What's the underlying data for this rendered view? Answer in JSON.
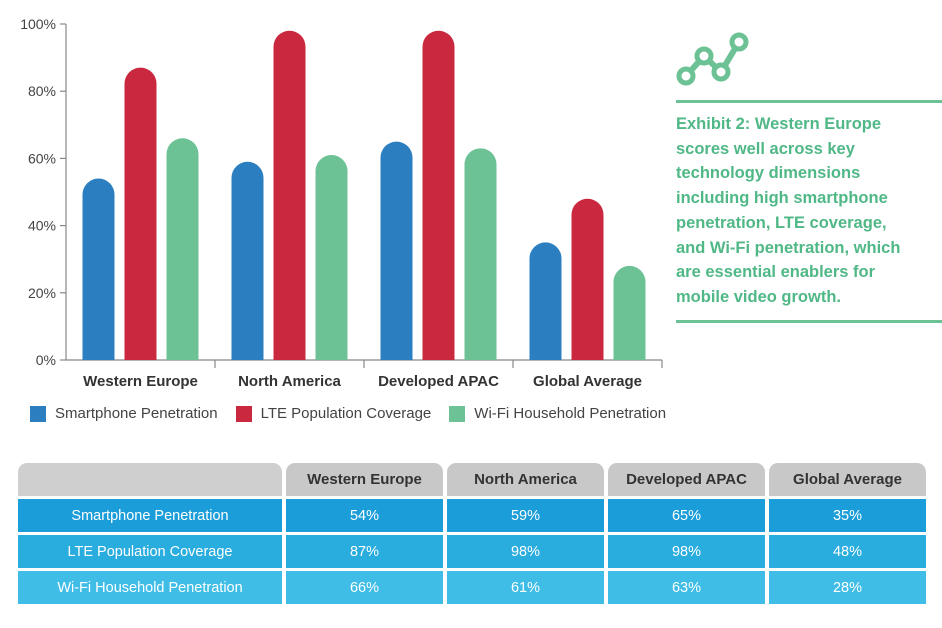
{
  "chart_data": {
    "type": "bar",
    "categories": [
      "Western Europe",
      "North America",
      "Developed APAC",
      "Global Average"
    ],
    "series": [
      {
        "name": "Smartphone Penetration",
        "values": [
          54,
          59,
          65,
          35
        ],
        "color": "#2b7fc0"
      },
      {
        "name": "LTE Population Coverage",
        "values": [
          87,
          98,
          98,
          48
        ],
        "color": "#c9283e"
      },
      {
        "name": "Wi-Fi Household Penetration",
        "values": [
          66,
          61,
          63,
          28
        ],
        "color": "#6cc294"
      }
    ],
    "ylim": [
      0,
      100
    ],
    "yticks": [
      "0%",
      "20%",
      "40%",
      "60%",
      "80%",
      "100%"
    ],
    "ytick_values": [
      0,
      20,
      40,
      60,
      80,
      100
    ],
    "legend_position": "bottom",
    "grid": false
  },
  "exhibit": {
    "text": "Exhibit 2: Western Europe scores well across key technology dimensions including high smartphone penetration, LTE coverage, and Wi-Fi penetration, which are essential enablers for mobile video growth.",
    "accent_color": "#6cc294",
    "icon": "line-chart-icon"
  },
  "table": {
    "headers": [
      "Western Europe",
      "North America",
      "Developed APAC",
      "Global Average"
    ],
    "rows": [
      {
        "label": "Smartphone Penetration",
        "cells": [
          "54%",
          "59%",
          "65%",
          "35%"
        ]
      },
      {
        "label": "LTE Population Coverage",
        "cells": [
          "87%",
          "98%",
          "98%",
          "48%"
        ]
      },
      {
        "label": "Wi-Fi Household Penetration",
        "cells": [
          "66%",
          "61%",
          "63%",
          "28%"
        ]
      }
    ]
  }
}
